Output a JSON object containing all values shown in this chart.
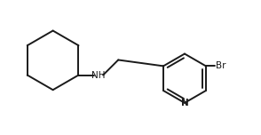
{
  "background": "#ffffff",
  "line_color": "#1a1a1a",
  "bond_lw": 1.4,
  "text_NH": "NH",
  "text_Br": "Br",
  "text_N": "N",
  "nh_fontsize": 7.5,
  "br_fontsize": 7.5,
  "n_fontsize": 7.5,
  "xlim": [
    0.0,
    7.2
  ],
  "ylim": [
    0.5,
    4.2
  ],
  "figw": 2.94,
  "figh": 1.52,
  "dpi": 100
}
